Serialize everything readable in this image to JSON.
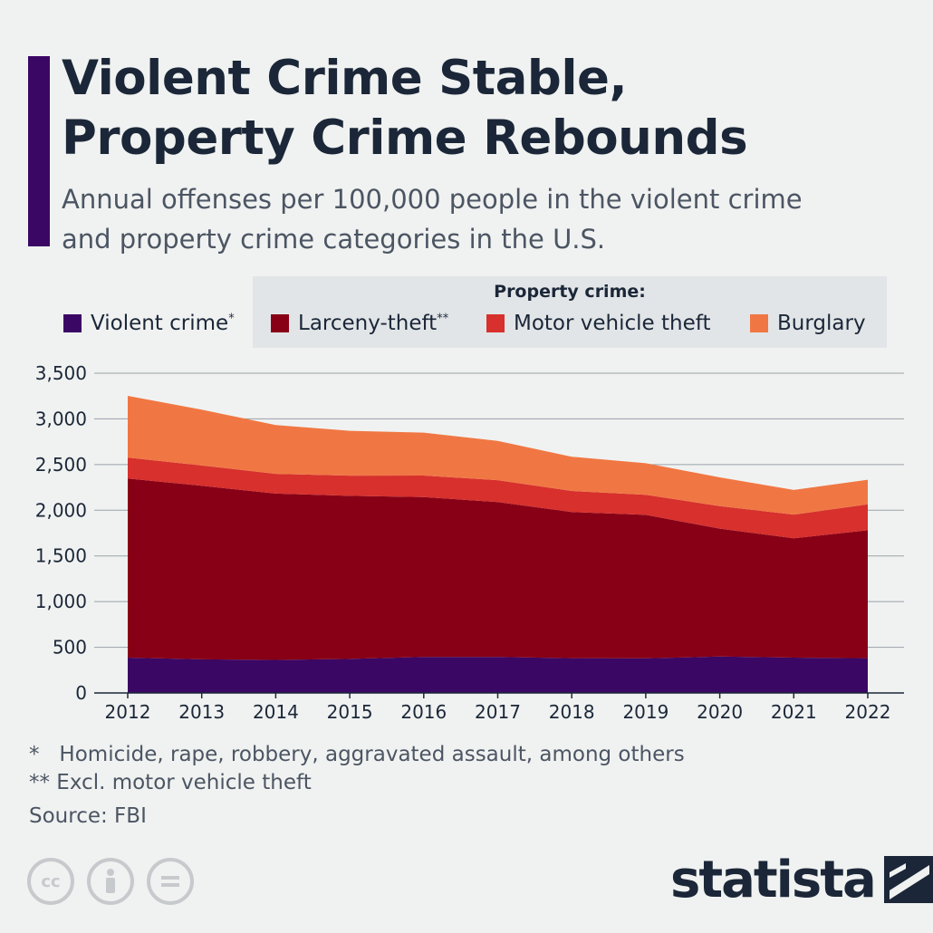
{
  "header": {
    "title_line1": "Violent Crime Stable,",
    "title_line2": "Property Crime Rebounds",
    "subtitle_line1": "Annual offenses per 100,000 people in the violent crime",
    "subtitle_line2": "and property crime categories in the U.S."
  },
  "legend": {
    "group_title": "Property crime:",
    "items": [
      {
        "label": "Violent crime",
        "mark": "*",
        "color": "#3b0764"
      },
      {
        "label": "Larceny-theft",
        "mark": "**",
        "color": "#880016"
      },
      {
        "label": "Motor vehicle theft",
        "mark": "",
        "color": "#d7302d"
      },
      {
        "label": "Burglary",
        "mark": "",
        "color": "#f07743"
      }
    ]
  },
  "chart_data": {
    "type": "area",
    "stacked": true,
    "x": [
      "2012",
      "2013",
      "2014",
      "2015",
      "2016",
      "2017",
      "2018",
      "2019",
      "2020",
      "2021",
      "2022"
    ],
    "series": [
      {
        "name": "Violent crime",
        "color": "#3b0764",
        "values": [
          387,
          368,
          362,
          373,
          395,
          394,
          381,
          379,
          399,
          387,
          381
        ]
      },
      {
        "name": "Larceny-theft",
        "color": "#880016",
        "values": [
          1960,
          1900,
          1820,
          1785,
          1750,
          1695,
          1600,
          1570,
          1400,
          1305,
          1400
        ]
      },
      {
        "name": "Motor vehicle theft",
        "color": "#d7302d",
        "values": [
          230,
          222,
          216,
          221,
          235,
          240,
          230,
          220,
          246,
          260,
          283
        ]
      },
      {
        "name": "Burglary",
        "color": "#f07743",
        "values": [
          675,
          610,
          535,
          490,
          470,
          430,
          375,
          345,
          315,
          270,
          270
        ]
      }
    ],
    "ylim": [
      0,
      3500
    ],
    "yticks": [
      0,
      500,
      1000,
      1500,
      2000,
      2500,
      3000,
      3500
    ],
    "ytick_labels": [
      "0",
      "500",
      "1,000",
      "1,500",
      "2,000",
      "2,500",
      "3,000",
      "3,500"
    ],
    "grid": true
  },
  "footnotes": {
    "note1": "*   Homicide, rape, robbery, aggravated assault, among others",
    "note2": "** Excl. motor vehicle theft",
    "source": "Source: FBI"
  },
  "license_icons": [
    {
      "icon": "cc-icon",
      "text": "cc"
    },
    {
      "icon": "attribution-icon",
      "text": ""
    },
    {
      "icon": "no-derivatives-icon",
      "text": ""
    }
  ],
  "brand": {
    "name": "statista",
    "icon": "statista-logo-icon"
  }
}
